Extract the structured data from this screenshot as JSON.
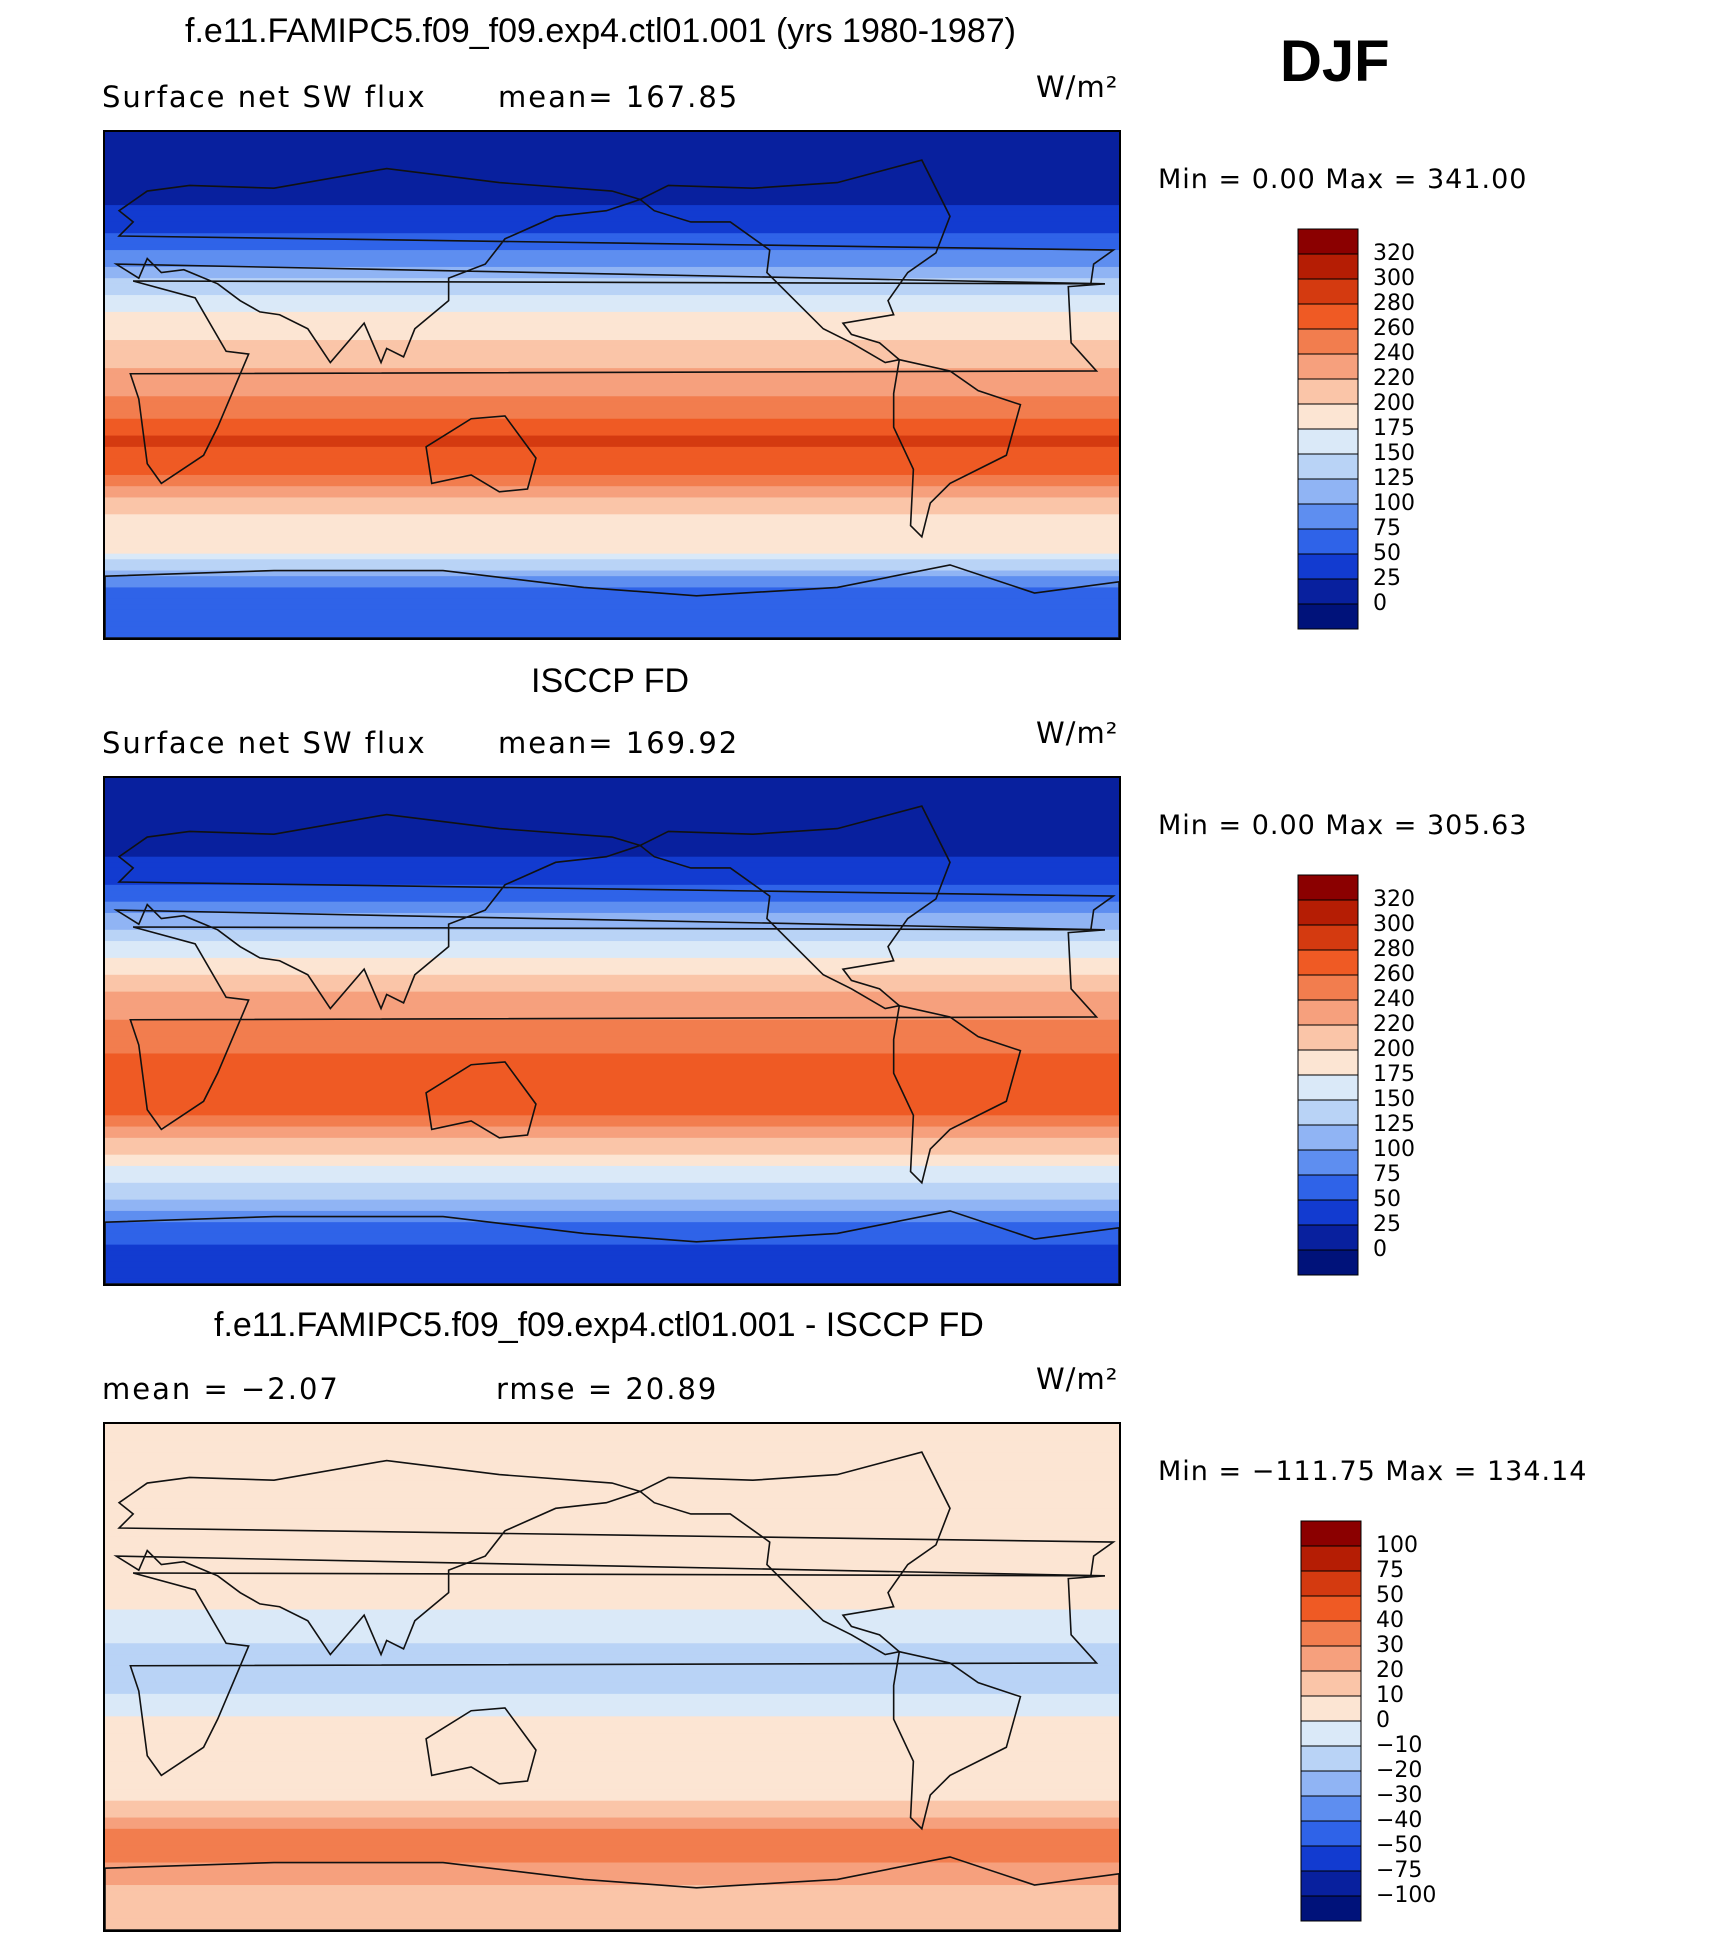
{
  "season": "DJF",
  "units_label": "W/m²",
  "chart_data": [
    {
      "type": "heatmap",
      "title": "f.e11.FAMIPC5.f09_f09.exp4.ctl01.001 (yrs 1980-1987)",
      "left_label": "Surface net SW flux",
      "stat_label": "mean=  167.85",
      "units": "W/m²",
      "variable": "Surface net SW flux",
      "mean": 167.85,
      "min": 0.0,
      "max": 341.0,
      "minmax_text": "Min  =     0.00  Max  =  341.00",
      "colorbar_levels": [
        "320",
        "300",
        "280",
        "260",
        "240",
        "220",
        "200",
        "175",
        "150",
        "125",
        "100",
        "75",
        "50",
        "25",
        "0"
      ],
      "colorbar_colors": [
        "#8b0000",
        "#b51d04",
        "#d43a10",
        "#ef5a24",
        "#f27d4e",
        "#f6a07d",
        "#fac5a8",
        "#fce5d3",
        "#dae9f8",
        "#b9d3f6",
        "#90b4f4",
        "#5e8ef0",
        "#2f63e8",
        "#123bd0",
        "#08209e",
        "#00127a"
      ],
      "zonal_profile": [
        {
          "lat": 80,
          "value": 5
        },
        {
          "lat": 65,
          "value": 20
        },
        {
          "lat": 50,
          "value": 60
        },
        {
          "lat": 40,
          "value": 110
        },
        {
          "lat": 30,
          "value": 165
        },
        {
          "lat": 20,
          "value": 190
        },
        {
          "lat": 10,
          "value": 215
        },
        {
          "lat": 0,
          "value": 225
        },
        {
          "lat": -10,
          "value": 255
        },
        {
          "lat": -20,
          "value": 285
        },
        {
          "lat": -30,
          "value": 265
        },
        {
          "lat": -40,
          "value": 215
        },
        {
          "lat": -50,
          "value": 190
        },
        {
          "lat": -60,
          "value": 175
        },
        {
          "lat": -70,
          "value": 80
        },
        {
          "lat": -80,
          "value": 60
        }
      ]
    },
    {
      "type": "heatmap",
      "title": "ISCCP FD",
      "left_label": "Surface net SW flux",
      "stat_label": "mean=  169.92",
      "units": "W/m²",
      "variable": "Surface net SW flux",
      "mean": 169.92,
      "min": 0.0,
      "max": 305.63,
      "minmax_text": "Min  =     0.00  Max  =  305.63",
      "colorbar_levels": [
        "320",
        "300",
        "280",
        "260",
        "240",
        "220",
        "200",
        "175",
        "150",
        "125",
        "100",
        "75",
        "50",
        "25",
        "0"
      ],
      "colorbar_colors": [
        "#8b0000",
        "#b51d04",
        "#d43a10",
        "#ef5a24",
        "#f27d4e",
        "#f6a07d",
        "#fac5a8",
        "#fce5d3",
        "#dae9f8",
        "#b9d3f6",
        "#90b4f4",
        "#5e8ef0",
        "#2f63e8",
        "#123bd0",
        "#08209e",
        "#00127a"
      ],
      "zonal_profile": [
        {
          "lat": 80,
          "value": 5
        },
        {
          "lat": 65,
          "value": 20
        },
        {
          "lat": 50,
          "value": 55
        },
        {
          "lat": 40,
          "value": 105
        },
        {
          "lat": 30,
          "value": 160
        },
        {
          "lat": 20,
          "value": 200
        },
        {
          "lat": 10,
          "value": 230
        },
        {
          "lat": 0,
          "value": 245
        },
        {
          "lat": -10,
          "value": 262
        },
        {
          "lat": -20,
          "value": 275
        },
        {
          "lat": -30,
          "value": 260
        },
        {
          "lat": -40,
          "value": 215
        },
        {
          "lat": -50,
          "value": 165
        },
        {
          "lat": -60,
          "value": 130
        },
        {
          "lat": -70,
          "value": 60
        },
        {
          "lat": -80,
          "value": 45
        }
      ]
    },
    {
      "type": "heatmap",
      "title": "f.e11.FAMIPC5.f09_f09.exp4.ctl01.001 - ISCCP FD",
      "left_label": "mean  =    −2.07",
      "stat_label": "rmse  =    20.89",
      "units": "W/m²",
      "mean": -2.07,
      "rmse": 20.89,
      "min": -111.75,
      "max": 134.14,
      "minmax_text": "Min  = −111.75  Max  =  134.14",
      "colorbar_levels": [
        "100",
        "75",
        "50",
        "40",
        "30",
        "20",
        "10",
        "0",
        "−10",
        "−20",
        "−30",
        "−40",
        "−50",
        "−75",
        "−100"
      ],
      "colorbar_colors": [
        "#8b0000",
        "#b51d04",
        "#d43a10",
        "#ef5a24",
        "#f27d4e",
        "#f6a07d",
        "#fac5a8",
        "#fce5d3",
        "#dae9f8",
        "#b9d3f6",
        "#90b4f4",
        "#5e8ef0",
        "#2f63e8",
        "#123bd0",
        "#08209e",
        "#00127a"
      ],
      "zonal_profile": [
        {
          "lat": 80,
          "value": 3
        },
        {
          "lat": 65,
          "value": 5
        },
        {
          "lat": 50,
          "value": 8
        },
        {
          "lat": 40,
          "value": 3
        },
        {
          "lat": 30,
          "value": 5
        },
        {
          "lat": 20,
          "value": -5
        },
        {
          "lat": 10,
          "value": -12
        },
        {
          "lat": 0,
          "value": -20
        },
        {
          "lat": -10,
          "value": -5
        },
        {
          "lat": -20,
          "value": 5
        },
        {
          "lat": -30,
          "value": 2
        },
        {
          "lat": -40,
          "value": 3
        },
        {
          "lat": -50,
          "value": 20
        },
        {
          "lat": -60,
          "value": 40
        },
        {
          "lat": -70,
          "value": 25
        },
        {
          "lat": -80,
          "value": 10
        }
      ]
    }
  ]
}
